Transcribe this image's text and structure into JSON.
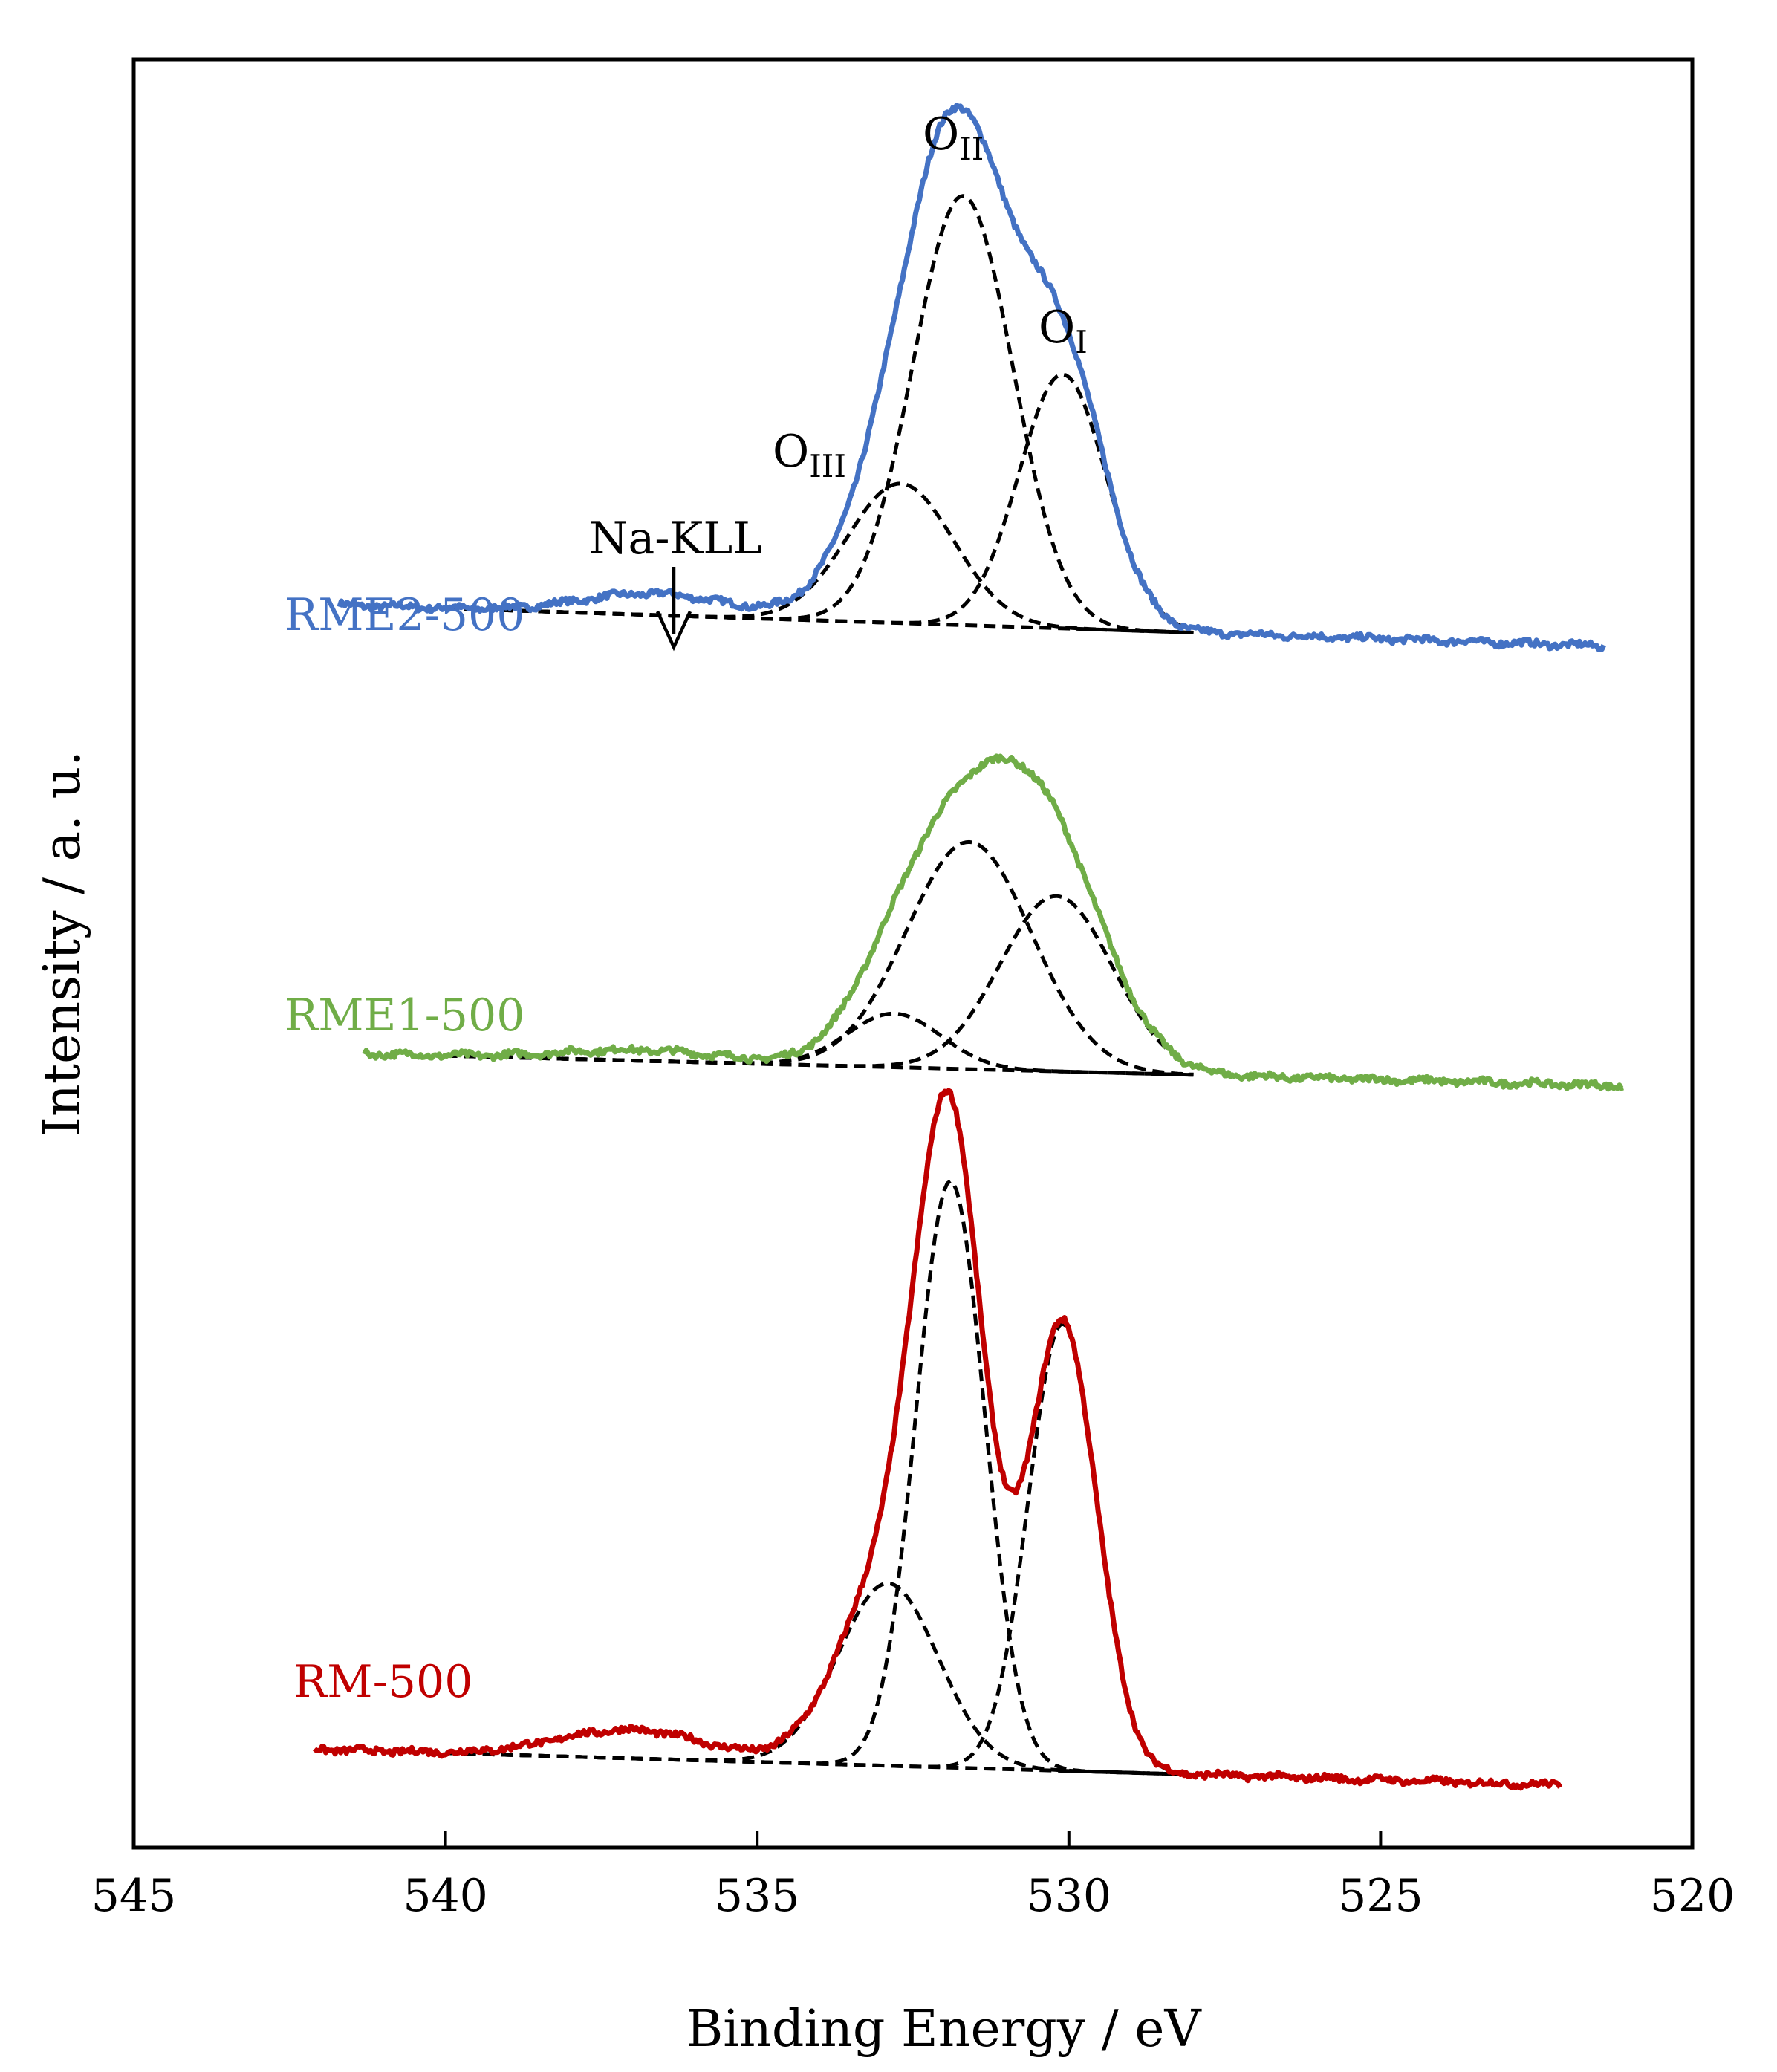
{
  "chart_data": {
    "type": "line",
    "title": "",
    "xlabel": "Binding Energy / eV",
    "ylabel": "Intensity / a. u.",
    "xlim": [
      545,
      520
    ],
    "x_reversed": true,
    "ylim": [
      0,
      100
    ],
    "grid": false,
    "x_ticks": [
      "545",
      "540",
      "535",
      "530",
      "525",
      "520"
    ],
    "peak_labels": {
      "o_ii": {
        "base": "O",
        "sub": "II",
        "x": 531.8
      },
      "o_i": {
        "base": "O",
        "sub": "I",
        "x": 530.0
      },
      "o_iii": {
        "base": "O",
        "sub": "III",
        "x": 533.7
      },
      "na_kll": {
        "text": "Na-KLL",
        "x": 536.4
      }
    },
    "series": [
      {
        "name": "RME2-500",
        "color": "#4472C4",
        "baseline_start": 69.5,
        "baseline_end": 67.2,
        "x_range": [
          541.7,
          521.4
        ],
        "components": [
          {
            "label": "O_III",
            "center": 532.7,
            "height": 7.8,
            "sigma": 0.85
          },
          {
            "label": "O_II",
            "center": 531.7,
            "height": 24.0,
            "sigma": 0.8
          },
          {
            "label": "O_I",
            "center": 530.1,
            "height": 14.2,
            "sigma": 0.7
          },
          {
            "label": "Na-KLL",
            "center": 536.6,
            "height": 1.2,
            "sigma": 1.2
          }
        ]
      },
      {
        "name": "RME1-500",
        "color": "#70AD47",
        "baseline_start": 44.4,
        "baseline_end": 42.6,
        "x_range": [
          541.3,
          521.1
        ],
        "components": [
          {
            "label": "O_III",
            "center": 532.8,
            "height": 3.0,
            "sigma": 0.75
          },
          {
            "label": "O_II",
            "center": 531.6,
            "height": 12.7,
            "sigma": 1.0
          },
          {
            "label": "O_I",
            "center": 530.2,
            "height": 9.8,
            "sigma": 0.9
          },
          {
            "label": "Na-KLL",
            "center": 536.8,
            "height": 0.6,
            "sigma": 1.3
          }
        ]
      },
      {
        "name": "RM-500",
        "color": "#C00000",
        "baseline_start": 5.5,
        "baseline_end": 3.5,
        "x_range": [
          542.1,
          522.1
        ],
        "components": [
          {
            "label": "O_III",
            "center": 532.9,
            "height": 10.2,
            "sigma": 0.8
          },
          {
            "label": "O_II",
            "center": 531.9,
            "height": 32.8,
            "sigma": 0.55
          },
          {
            "label": "O_I",
            "center": 530.1,
            "height": 25.0,
            "sigma": 0.55
          },
          {
            "label": "Na-KLL",
            "center": 537.0,
            "height": 1.6,
            "sigma": 1.2
          }
        ]
      }
    ]
  }
}
